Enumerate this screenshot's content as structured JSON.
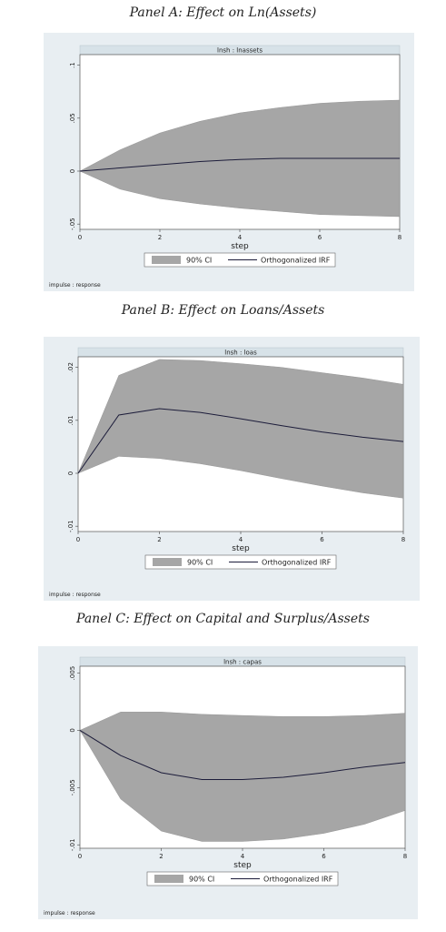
{
  "panels": [
    {
      "title": "Panel A: Effect on Ln(Assets)"
    },
    {
      "title": "Panel B: Effect on Loans/Assets"
    },
    {
      "title": "Panel C: Effect on Capital and Surplus/Assets"
    }
  ],
  "colors": {
    "graph_bg": "#e8eef2",
    "plot_bg": "#ffffff",
    "band": "#a6a6a6",
    "irf_line": "#1c1c3a",
    "header_bg": "#d7e2e8"
  },
  "chart_data": [
    {
      "type": "area",
      "panel_title": "Panel A: Effect on Ln(Assets)",
      "header": "lnsh : lnassets",
      "xlabel": "step",
      "x": [
        0,
        1,
        2,
        3,
        4,
        5,
        6,
        7,
        8
      ],
      "xticks": [
        "0",
        "2",
        "4",
        "6",
        "8"
      ],
      "yticks": [
        -0.05,
        0,
        0.05,
        0.1
      ],
      "ytick_labels": [
        "-.05",
        "0",
        ".05",
        ".1"
      ],
      "ylim": [
        -0.055,
        0.11
      ],
      "legend": [
        "90% CI",
        "Orthogonalized IRF"
      ],
      "legend_placement": "bottom",
      "note": "impulse : response",
      "series": [
        {
          "name": "Orthogonalized IRF",
          "values": [
            0,
            0.003,
            0.006,
            0.009,
            0.011,
            0.012,
            0.012,
            0.012,
            0.012
          ]
        },
        {
          "name": "90% CI",
          "lower": [
            0,
            -0.017,
            -0.026,
            -0.031,
            -0.035,
            -0.038,
            -0.041,
            -0.042,
            -0.043
          ],
          "upper": [
            0,
            0.02,
            0.036,
            0.047,
            0.055,
            0.06,
            0.064,
            0.066,
            0.067
          ]
        }
      ]
    },
    {
      "type": "area",
      "panel_title": "Panel B: Effect on Loans/Assets",
      "header": "lnsh : loas",
      "xlabel": "step",
      "x": [
        0,
        1,
        2,
        3,
        4,
        5,
        6,
        7,
        8
      ],
      "xticks": [
        "0",
        "2",
        "4",
        "6",
        "8"
      ],
      "yticks": [
        -0.01,
        0,
        0.01,
        0.02
      ],
      "ytick_labels": [
        "-.01",
        "0",
        ".01",
        ".02"
      ],
      "ylim": [
        -0.011,
        0.022
      ],
      "legend": [
        "90% CI",
        "Orthogonalized IRF"
      ],
      "legend_placement": "bottom",
      "note": "impulse : response",
      "series": [
        {
          "name": "Orthogonalized IRF",
          "values": [
            0,
            0.011,
            0.0122,
            0.0115,
            0.0103,
            0.009,
            0.0078,
            0.0068,
            0.006
          ]
        },
        {
          "name": "90% CI",
          "lower": [
            0,
            0.0032,
            0.0028,
            0.0018,
            0.0005,
            -0.001,
            -0.0024,
            -0.0037,
            -0.0047
          ],
          "upper": [
            0,
            0.0185,
            0.0215,
            0.0213,
            0.0207,
            0.02,
            0.019,
            0.018,
            0.0168
          ]
        }
      ]
    },
    {
      "type": "area",
      "panel_title": "Panel C: Effect on Capital and Surplus/Assets",
      "header": "lnsh : capas",
      "xlabel": "step",
      "x": [
        0,
        1,
        2,
        3,
        4,
        5,
        6,
        7,
        8
      ],
      "xticks": [
        "0",
        "2",
        "4",
        "6",
        "8"
      ],
      "yticks": [
        -0.01,
        -0.005,
        0,
        0.005
      ],
      "ytick_labels": [
        "-.01",
        "-.005",
        "0",
        ".005"
      ],
      "ylim": [
        -0.0103,
        0.0056
      ],
      "legend": [
        "90% CI",
        "Orthogonalized IRF"
      ],
      "legend_placement": "bottom",
      "note": "impulse : response",
      "series": [
        {
          "name": "Orthogonalized IRF",
          "values": [
            0,
            -0.0022,
            -0.0037,
            -0.0043,
            -0.0043,
            -0.0041,
            -0.0037,
            -0.0032,
            -0.0028
          ]
        },
        {
          "name": "90% CI",
          "lower": [
            0,
            -0.006,
            -0.0088,
            -0.0097,
            -0.0097,
            -0.0095,
            -0.009,
            -0.0082,
            -0.007
          ],
          "upper": [
            0,
            0.0016,
            0.0016,
            0.0014,
            0.0013,
            0.0012,
            0.0012,
            0.0013,
            0.0015
          ]
        }
      ]
    }
  ]
}
